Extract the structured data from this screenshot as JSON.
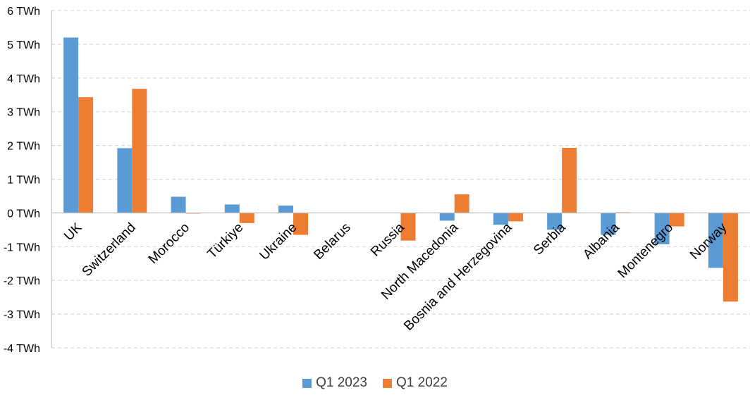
{
  "chart_data": {
    "type": "bar",
    "title": "",
    "xlabel": "",
    "ylabel": "",
    "ylim": [
      -4,
      6
    ],
    "yticks": [
      6,
      5,
      4,
      3,
      2,
      1,
      0,
      -1,
      -2,
      -3,
      -4
    ],
    "ytick_labels": [
      "6 TWh",
      "5 TWh",
      "4 TWh",
      "3 TWh",
      "2 TWh",
      "1 TWh",
      "0 TWh",
      "-1 TWh",
      "-2 TWh",
      "-3 TWh",
      "-4 TWh"
    ],
    "grid": true,
    "legend_position": "bottom-center",
    "categories": [
      "UK",
      "Switzerland",
      "Morocco",
      "Türkiye",
      "Ukraine",
      "Belarus",
      "Russia",
      "North Macedonia",
      "Bosnia and Herzegovina",
      "Serbia",
      "Albania",
      "Montenegro",
      "Norway"
    ],
    "series": [
      {
        "name": "Q1 2023",
        "color": "#5b9bd5",
        "values": [
          5.2,
          1.92,
          0.48,
          0.25,
          0.22,
          0.0,
          0.0,
          -0.23,
          -0.35,
          -0.5,
          -0.65,
          -0.93,
          -1.63
        ]
      },
      {
        "name": "Q1 2022",
        "color": "#ed7d31",
        "values": [
          3.43,
          3.68,
          -0.02,
          -0.3,
          -0.65,
          0.0,
          -0.82,
          0.55,
          -0.25,
          1.93,
          0.02,
          -0.4,
          -2.63
        ]
      }
    ]
  }
}
